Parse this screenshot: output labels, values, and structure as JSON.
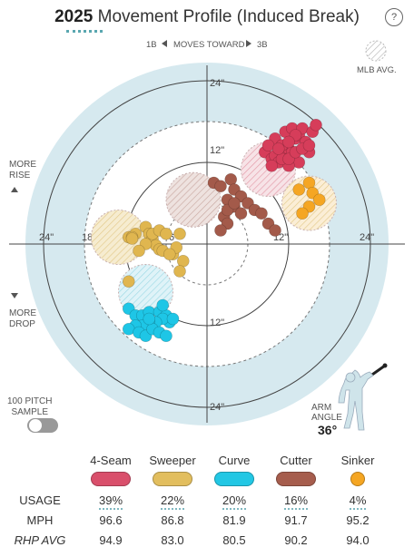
{
  "header": {
    "year": "2025",
    "title": "Movement Profile (Induced Break)",
    "help_label": "?"
  },
  "direction": {
    "left": "1B",
    "middle": "MOVES TOWARD",
    "right": "3B"
  },
  "mlb_avg_label": "MLB AVG.",
  "side_labels": {
    "more_rise": "MORE\nRISE",
    "more_drop": "MORE\nDROP",
    "sample": "100 PITCH\nSAMPLE"
  },
  "arm_angle": {
    "label": "ARM\nANGLE",
    "value": "36°"
  },
  "chart_data": {
    "type": "scatter",
    "x_label_left": "1B",
    "x_label_right": "3B",
    "ring_labels": [
      "6\"",
      "12\"",
      "18\"",
      "24\""
    ],
    "axis_range_in": [
      -24,
      24
    ],
    "series": [
      {
        "name": "4-Seam",
        "color": "#d63d5a",
        "avg": [
          9,
          11
        ],
        "points": [
          [
            8.5,
            13.5
          ],
          [
            9.5,
            12.5
          ],
          [
            11,
            13
          ],
          [
            12,
            14
          ],
          [
            13,
            15.5
          ],
          [
            10,
            15.5
          ],
          [
            11.5,
            16.5
          ],
          [
            12.5,
            17
          ],
          [
            13.5,
            16
          ],
          [
            14.5,
            15
          ],
          [
            15,
            13.5
          ],
          [
            13.5,
            12
          ],
          [
            12.5,
            13.5
          ],
          [
            11,
            14.5
          ],
          [
            10,
            13
          ],
          [
            9,
            14.5
          ],
          [
            10.5,
            12
          ],
          [
            14,
            17
          ],
          [
            15.5,
            16.5
          ],
          [
            12,
            11.5
          ],
          [
            9.5,
            11.5
          ],
          [
            11,
            12.5
          ],
          [
            12,
            12.5
          ],
          [
            13,
            13.5
          ],
          [
            14,
            14
          ],
          [
            15,
            14.5
          ],
          [
            16,
            17.5
          ],
          [
            13,
            16
          ],
          [
            10.5,
            14
          ],
          [
            12,
            15
          ]
        ]
      },
      {
        "name": "Sweeper",
        "color": "#e0b64f",
        "avg": [
          -13,
          1
        ],
        "points": [
          [
            -11.5,
            1
          ],
          [
            -10.5,
            1.5
          ],
          [
            -9,
            2.5
          ],
          [
            -8.5,
            1.5
          ],
          [
            -8,
            0.8
          ],
          [
            -7.5,
            -0.2
          ],
          [
            -7,
            -0.8
          ],
          [
            -6.5,
            -1
          ],
          [
            -5,
            -1.5
          ],
          [
            -4.5,
            -0.5
          ],
          [
            -4,
            1.5
          ],
          [
            -3.5,
            -2.5
          ],
          [
            -4,
            -4
          ],
          [
            -5.5,
            -1.5
          ],
          [
            -9,
            0
          ],
          [
            -10,
            -1
          ],
          [
            -11,
            1
          ],
          [
            -11,
            0.8
          ],
          [
            -11.5,
            -5.5
          ],
          [
            -8,
            1.5
          ],
          [
            -7,
            2
          ],
          [
            -6,
            1.5
          ]
        ]
      },
      {
        "name": "Curve",
        "color": "#1ec6e6",
        "avg": [
          -9,
          -7
        ],
        "points": [
          [
            -11.5,
            -9.5
          ],
          [
            -10.5,
            -10.5
          ],
          [
            -9.5,
            -10.5
          ],
          [
            -8.5,
            -10
          ],
          [
            -7,
            -10
          ],
          [
            -6,
            -10.5
          ],
          [
            -5.5,
            -11.5
          ],
          [
            -6.5,
            -11
          ],
          [
            -7.5,
            -11.5
          ],
          [
            -8.5,
            -11.5
          ],
          [
            -9.5,
            -12
          ],
          [
            -10.5,
            -12
          ],
          [
            -11.5,
            -12.5
          ],
          [
            -10,
            -13
          ],
          [
            -9,
            -13.5
          ],
          [
            -8,
            -12.5
          ],
          [
            -7,
            -13
          ],
          [
            -6,
            -13.5
          ],
          [
            -6.5,
            -9
          ],
          [
            -5,
            -11
          ],
          [
            -8.5,
            -11
          ]
        ]
      },
      {
        "name": "Cutter",
        "color": "#a35a4a",
        "avg": [
          -2,
          6.5
        ],
        "points": [
          [
            1,
            9
          ],
          [
            2,
            8.5
          ],
          [
            3.5,
            9.5
          ],
          [
            4,
            8
          ],
          [
            5,
            7
          ],
          [
            6,
            6
          ],
          [
            7,
            5
          ],
          [
            8,
            4.5
          ],
          [
            9,
            3
          ],
          [
            10,
            2
          ],
          [
            3,
            6.5
          ],
          [
            4,
            5.5
          ],
          [
            5,
            4.5
          ],
          [
            2.5,
            4
          ],
          [
            3,
            3
          ],
          [
            2,
            2
          ],
          [
            3,
            5
          ],
          [
            4,
            6
          ]
        ]
      },
      {
        "name": "Sinker",
        "color": "#f5a623",
        "avg": [
          15,
          6
        ],
        "points": [
          [
            13.5,
            8
          ],
          [
            15,
            9
          ],
          [
            15.5,
            7.5
          ],
          [
            16.5,
            6.5
          ],
          [
            15,
            5.5
          ],
          [
            14,
            4.5
          ]
        ]
      }
    ]
  },
  "stats": {
    "pitch_names": [
      "4-Seam",
      "Sweeper",
      "Curve",
      "Cutter",
      "Sinker"
    ],
    "colors": [
      "#d94f6b",
      "#e2be5e",
      "#22c7e4",
      "#a65d4d",
      "#f5a623"
    ],
    "row_labels": {
      "usage": "USAGE",
      "mph": "MPH",
      "rhp": "RHP AVG"
    },
    "usage": [
      "39%",
      "22%",
      "20%",
      "16%",
      "4%"
    ],
    "mph": [
      "96.6",
      "86.8",
      "81.9",
      "91.7",
      "95.2"
    ],
    "rhp_avg": [
      "94.9",
      "83.0",
      "80.5",
      "90.2",
      "94.0"
    ]
  }
}
